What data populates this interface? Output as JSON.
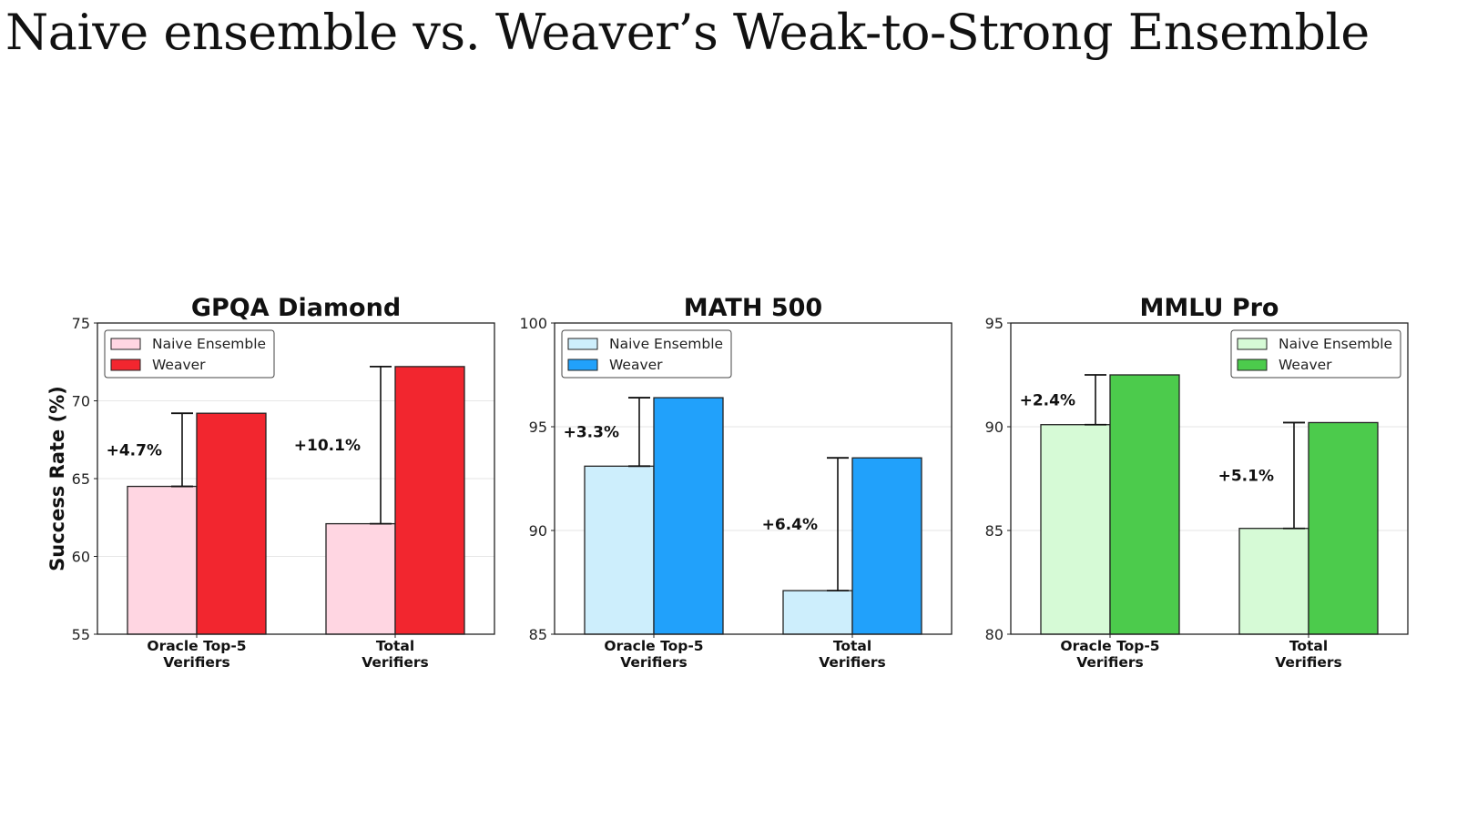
{
  "slide": {
    "title": "Naive ensemble vs. Weaver’s Weak-to-Strong Ensemble"
  },
  "chart_data": [
    {
      "type": "bar",
      "title": "GPQA Diamond",
      "ylabel": "Success Rate (%)",
      "ylim": [
        55,
        75
      ],
      "yticks": [
        55,
        60,
        65,
        70,
        75
      ],
      "categories": [
        "Oracle Top-5\nVerifiers",
        "Total\nVerifiers"
      ],
      "series": [
        {
          "name": "Naive Ensemble",
          "values": [
            64.5,
            62.1
          ],
          "color": "#ffd6e2"
        },
        {
          "name": "Weaver",
          "values": [
            69.2,
            72.2
          ],
          "color": "#f2262f"
        }
      ],
      "annotations": [
        "+4.7%",
        "+10.1%"
      ],
      "legend": "top-left",
      "grid": true
    },
    {
      "type": "bar",
      "title": "MATH 500",
      "ylabel": "",
      "ylim": [
        85,
        100
      ],
      "yticks": [
        85,
        90,
        95,
        100
      ],
      "categories": [
        "Oracle Top-5\nVerifiers",
        "Total\nVerifiers"
      ],
      "series": [
        {
          "name": "Naive Ensemble",
          "values": [
            93.1,
            87.1
          ],
          "color": "#cdeefc"
        },
        {
          "name": "Weaver",
          "values": [
            96.4,
            93.5
          ],
          "color": "#21a1fb"
        }
      ],
      "annotations": [
        "+3.3%",
        "+6.4%"
      ],
      "legend": "top-left",
      "grid": true
    },
    {
      "type": "bar",
      "title": "MMLU Pro",
      "ylabel": "",
      "ylim": [
        80,
        95
      ],
      "yticks": [
        80,
        85,
        90,
        95
      ],
      "categories": [
        "Oracle Top-5\nVerifiers",
        "Total\nVerifiers"
      ],
      "series": [
        {
          "name": "Naive Ensemble",
          "values": [
            90.1,
            85.1
          ],
          "color": "#d6fad6"
        },
        {
          "name": "Weaver",
          "values": [
            92.5,
            90.2
          ],
          "color": "#4ccb4c"
        }
      ],
      "annotations": [
        "+2.4%",
        "+5.1%"
      ],
      "legend": "top-right",
      "grid": true
    }
  ]
}
